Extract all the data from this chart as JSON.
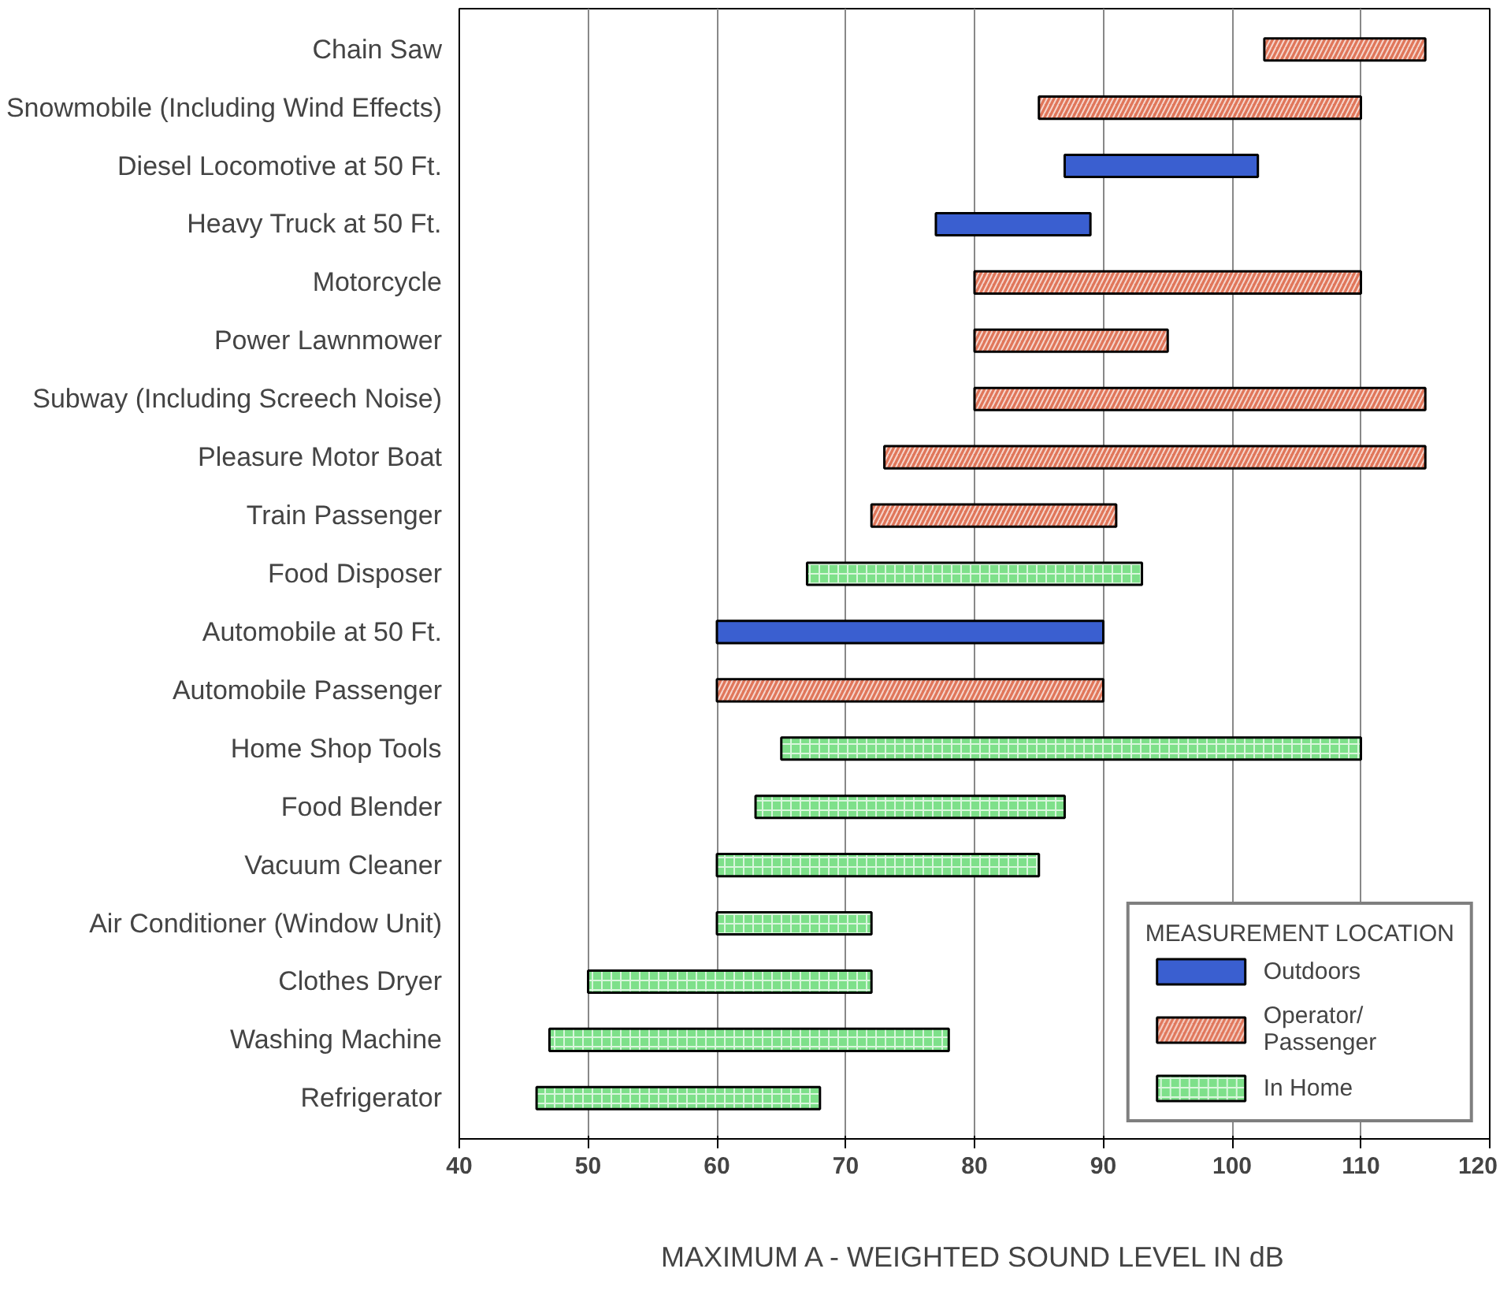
{
  "chart_data": {
    "type": "bar",
    "orientation": "horizontal",
    "xlabel": "MAXIMUM A - WEIGHTED SOUND LEVEL IN dB",
    "legend_title": "MEASUREMENT LOCATION",
    "legend": "bottom right",
    "grid": "x",
    "categories": [
      "Chain Saw",
      "Snowmobile (Including Wind Effects)",
      "Diesel Locomotive at 50 Ft.",
      "Heavy Truck at 50 Ft.",
      "Motorcycle",
      "Power Lawnmower",
      "Subway (Including Screech Noise)",
      "Pleasure Motor Boat",
      "Train Passenger",
      "Food Disposer",
      "Automobile at 50 Ft.",
      "Automobile Passenger",
      "Home Shop Tools",
      "Food Blender",
      "Vacuum Cleaner",
      "Air Conditioner (Window Unit)",
      "Clothes Dryer",
      "Washing Machine",
      "Refrigerator"
    ],
    "series": [
      {
        "name": "Outdoors",
        "color": "#3a5fd0",
        "values": [
          null,
          null,
          15,
          12,
          null,
          null,
          null,
          null,
          null,
          null,
          30,
          null,
          null,
          null,
          null,
          null,
          null,
          null,
          null
        ],
        "base": [
          null,
          null,
          87,
          77,
          null,
          null,
          null,
          null,
          null,
          null,
          60,
          null,
          null,
          null,
          null,
          null,
          null,
          null,
          null
        ]
      },
      {
        "name": "Operator/\nPassenger",
        "color": "#e0765a",
        "values": [
          12.5,
          25,
          null,
          null,
          30,
          15,
          35,
          42,
          19,
          null,
          null,
          30,
          null,
          null,
          null,
          null,
          null,
          null,
          null
        ],
        "base": [
          102.5,
          85,
          null,
          null,
          80,
          80,
          80,
          73,
          72,
          null,
          null,
          60,
          null,
          null,
          null,
          null,
          null,
          null,
          null
        ]
      },
      {
        "name": "In Home",
        "color": "#7ee08a",
        "values": [
          null,
          null,
          null,
          null,
          null,
          null,
          null,
          null,
          null,
          26,
          null,
          null,
          45,
          24,
          25,
          12,
          22,
          31,
          22
        ],
        "base": [
          null,
          null,
          null,
          null,
          null,
          null,
          null,
          null,
          null,
          67,
          null,
          null,
          65,
          63,
          60,
          60,
          50,
          47,
          46
        ]
      }
    ],
    "xlim": [
      40,
      120
    ],
    "xticks": [
      40,
      50,
      60,
      70,
      80,
      90,
      100,
      110,
      120
    ]
  }
}
